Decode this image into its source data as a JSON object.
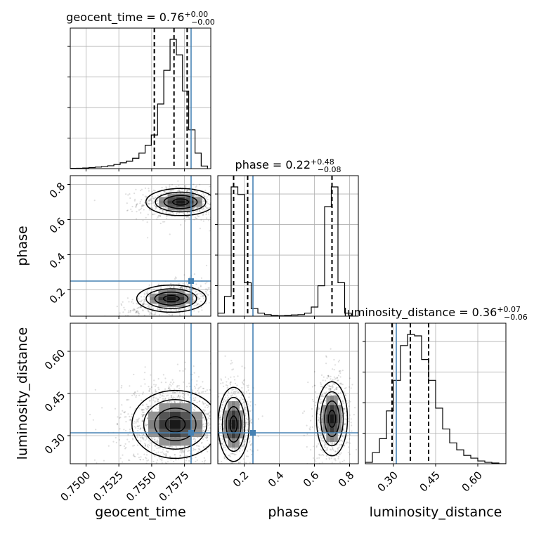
{
  "chart_data": {
    "type": "corner",
    "parameters": [
      "geocent_time",
      "phase",
      "luminosity_distance"
    ],
    "truths": [
      0.758,
      0.25,
      0.31
    ],
    "ranges": [
      [
        0.7488,
        0.7595
      ],
      [
        0.05,
        0.85
      ],
      [
        0.2,
        0.7
      ]
    ],
    "titles": [
      {
        "main": "geocent_time = 0.76",
        "plus": "+0.00",
        "minus": "−0.00"
      },
      {
        "main": "phase = 0.22",
        "plus": "+0.48",
        "minus": "−0.08"
      },
      {
        "main": "luminosity_distance = 0.36",
        "plus": "+0.07",
        "minus": "−0.06"
      }
    ],
    "quantiles": [
      [
        0.7552,
        0.7567,
        0.7577
      ],
      [
        0.14,
        0.22,
        0.7
      ],
      [
        0.295,
        0.36,
        0.425
      ]
    ],
    "ticks": [
      {
        "values": [
          0.75,
          0.7525,
          0.755,
          0.7575
        ],
        "labels": [
          "0.7500",
          "0.7525",
          "0.7550",
          "0.7575"
        ]
      },
      {
        "values": [
          0.2,
          0.4,
          0.6,
          0.8
        ],
        "labels": [
          "0.2",
          "0.4",
          "0.6",
          "0.8"
        ]
      },
      {
        "values": [
          0.3,
          0.45,
          0.6
        ],
        "labels": [
          "0.30",
          "0.45",
          "0.60"
        ]
      }
    ],
    "histograms": [
      {
        "bin_edges": [
          0.7488,
          0.74927,
          0.74975,
          0.75022,
          0.7507,
          0.75118,
          0.75165,
          0.75212,
          0.7526,
          0.75307,
          0.75355,
          0.75403,
          0.7545,
          0.75497,
          0.75545,
          0.75592,
          0.7564,
          0.75688,
          0.75735,
          0.75782,
          0.7583,
          0.75877,
          0.75925
        ],
        "counts": [
          0.2,
          0.3,
          0.5,
          0.8,
          1.2,
          1.6,
          2.2,
          3.2,
          4.5,
          5.8,
          8,
          12,
          18,
          26,
          50,
          76,
          100,
          88,
          60,
          30,
          12,
          2
        ]
      },
      {
        "bin_edges": [
          0.05,
          0.088,
          0.126,
          0.164,
          0.202,
          0.24,
          0.278,
          0.316,
          0.354,
          0.392,
          0.43,
          0.468,
          0.506,
          0.544,
          0.582,
          0.62,
          0.658,
          0.696,
          0.734,
          0.772,
          0.81,
          0.848
        ],
        "counts": [
          2,
          13,
          85,
          80,
          22,
          5,
          2,
          1,
          0.5,
          0.3,
          0.5,
          0.8,
          1,
          2,
          6,
          20,
          72,
          85,
          22,
          2,
          0
        ]
      },
      {
        "bin_edges": [
          0.2,
          0.225,
          0.25,
          0.275,
          0.3,
          0.325,
          0.35,
          0.375,
          0.4,
          0.425,
          0.45,
          0.475,
          0.5,
          0.525,
          0.55,
          0.575,
          0.6,
          0.625,
          0.65,
          0.675,
          0.7
        ],
        "counts": [
          1,
          8,
          18,
          38,
          60,
          85,
          93,
          92,
          75,
          60,
          40,
          25,
          15,
          10,
          6,
          4,
          2,
          1,
          0.5,
          0
        ]
      }
    ],
    "pair_panels": [
      {
        "x": 0,
        "y": 1,
        "modes": [
          {
            "mean": [
              0.7572,
              0.7
            ],
            "std": [
              0.0012,
              0.035
            ],
            "weight": 0.5
          },
          {
            "mean": [
              0.7565,
              0.15
            ],
            "std": [
              0.0012,
              0.035
            ],
            "weight": 0.5
          }
        ]
      },
      {
        "x": 0,
        "y": 2,
        "modes": [
          {
            "mean": [
              0.7568,
              0.34
            ],
            "std": [
              0.0015,
              0.055
            ],
            "weight": 1
          }
        ]
      },
      {
        "x": 1,
        "y": 2,
        "modes": [
          {
            "mean": [
              0.14,
              0.34
            ],
            "std": [
              0.04,
              0.06
            ],
            "weight": 0.5
          },
          {
            "mean": [
              0.7,
              0.36
            ],
            "std": [
              0.04,
              0.06
            ],
            "weight": 0.5
          }
        ]
      }
    ]
  }
}
